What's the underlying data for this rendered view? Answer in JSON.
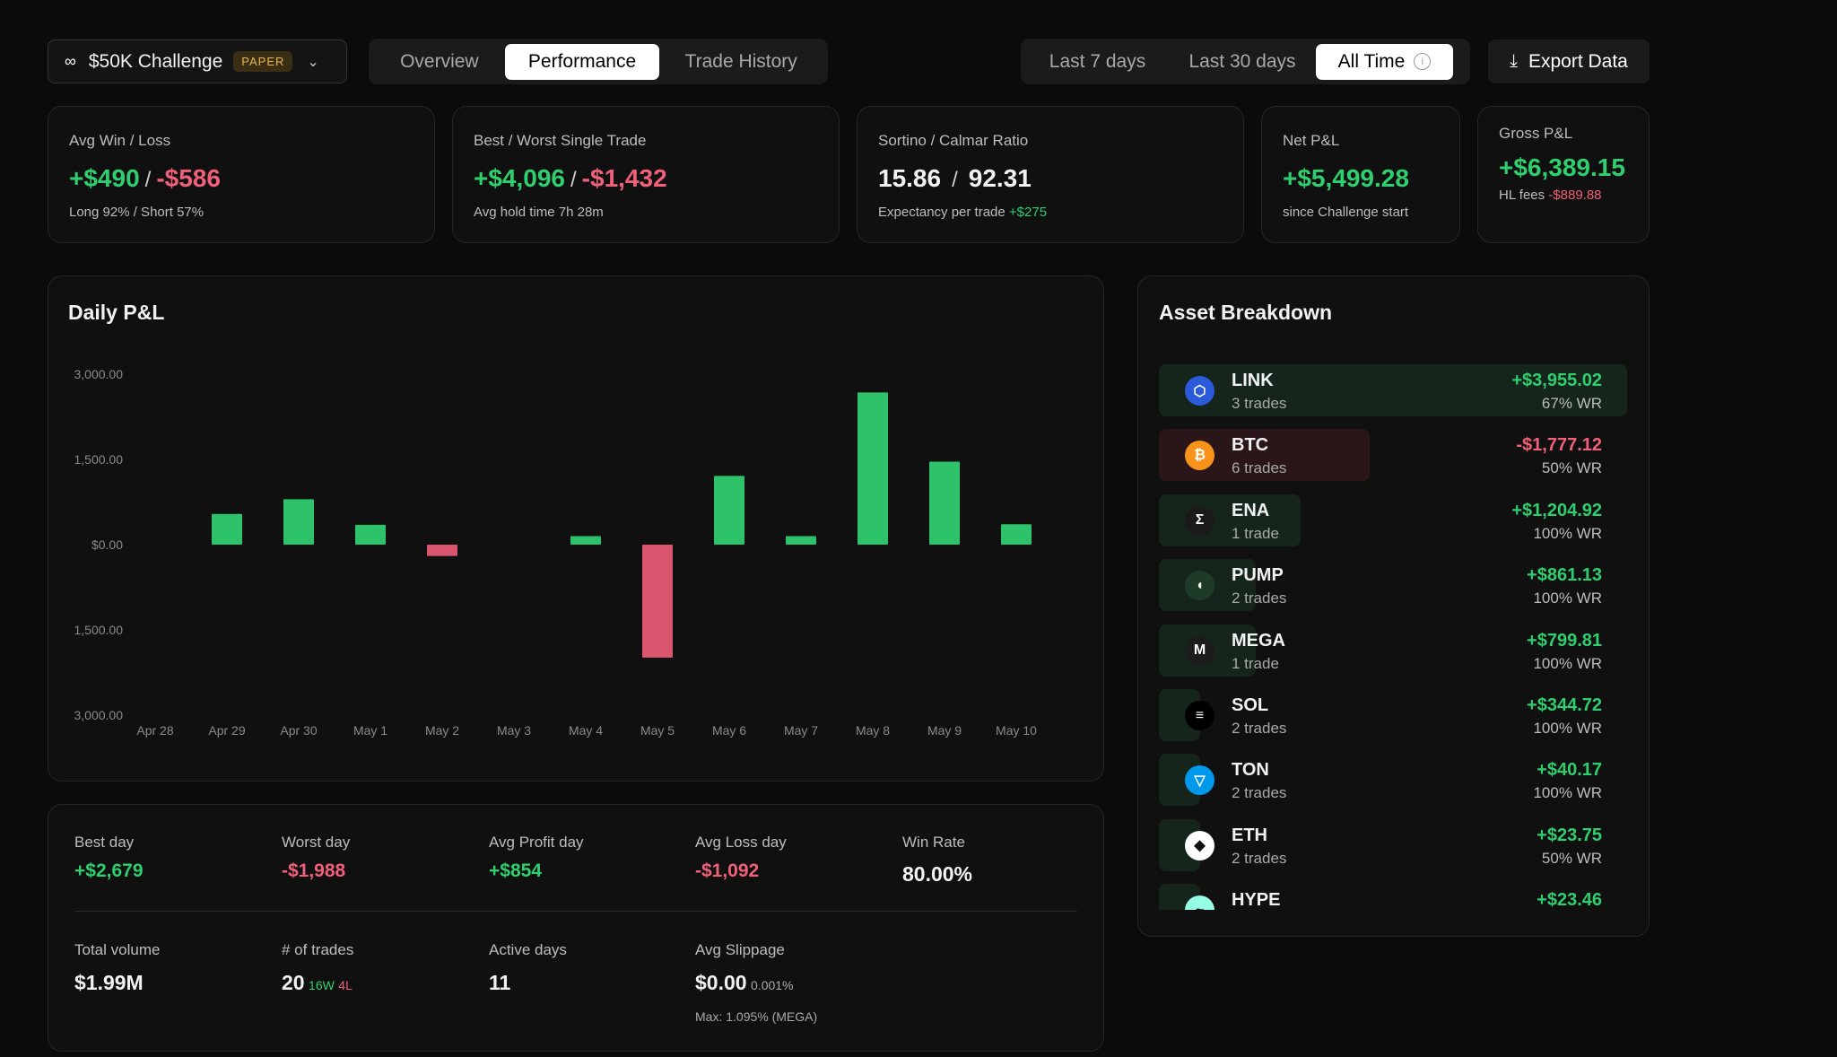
{
  "account": {
    "name": "$50K Challenge",
    "badge": "PAPER",
    "logo": "∞"
  },
  "tabs": [
    {
      "label": "Overview",
      "active": false
    },
    {
      "label": "Performance",
      "active": true
    },
    {
      "label": "Trade History",
      "active": false
    }
  ],
  "ranges": [
    {
      "label": "Last 7 days",
      "active": false
    },
    {
      "label": "Last 30 days",
      "active": false
    },
    {
      "label": "All Time",
      "active": true
    }
  ],
  "export_label": "Export Data",
  "kpis": {
    "avg_win_loss": {
      "label": "Avg Win / Loss",
      "win": "+$490",
      "loss": "-$586",
      "sub": "Long 92% / Short 57%"
    },
    "best_worst": {
      "label": "Best / Worst Single Trade",
      "best": "+$4,096",
      "worst": "-$1,432",
      "sub": "Avg hold time 7h 28m"
    },
    "ratios": {
      "label": "Sortino / Calmar Ratio",
      "sortino": "15.86",
      "calmar": "92.31",
      "sub_label": "Expectancy per trade",
      "sub_value": "+$275"
    },
    "net": {
      "label": "Net P&L",
      "value": "+$5,499.28",
      "sub": "since Challenge start"
    },
    "gross": {
      "label": "Gross P&L",
      "value": "+$6,389.15",
      "fee_label": "HL fees",
      "fee_value": "-$889.88"
    }
  },
  "chart_title": "Daily P&L",
  "chart_data": {
    "type": "bar",
    "categories": [
      "Apr 28",
      "Apr 29",
      "Apr 30",
      "May 1",
      "May 2",
      "May 3",
      "May 4",
      "May 5",
      "May 6",
      "May 7",
      "May 8",
      "May 9",
      "May 10"
    ],
    "values": [
      0,
      540,
      800,
      350,
      -200,
      0,
      150,
      -1988,
      1210,
      150,
      2679,
      1460,
      360
    ],
    "ylim": [
      -3000,
      3000
    ],
    "yticks": [
      3000,
      1500,
      0,
      -1500,
      -3000
    ],
    "ytick_labels": [
      "3,000.00",
      "1,500.00",
      "$0.00",
      "1,500.00",
      "3,000.00"
    ],
    "colors": {
      "positive": "#2ec26a",
      "negative": "#d9566e"
    }
  },
  "asset_title": "Asset Breakdown",
  "assets": [
    {
      "symbol": "LINK",
      "trades": "3 trades",
      "pnl": "+$3,955.02",
      "wr": "67% WR",
      "positive": true,
      "icon": "link-icon",
      "icon_bg": "#2a5ada",
      "glyph": "⬡"
    },
    {
      "symbol": "BTC",
      "trades": "6 trades",
      "pnl": "-$1,777.12",
      "wr": "50% WR",
      "positive": false,
      "icon": "bitcoin-icon",
      "icon_bg": "#f7931a",
      "glyph": "₿"
    },
    {
      "symbol": "ENA",
      "trades": "1 trade",
      "pnl": "+$1,204.92",
      "wr": "100% WR",
      "positive": true,
      "icon": "ena-icon",
      "icon_bg": "#1a1a1a",
      "glyph": "Σ"
    },
    {
      "symbol": "PUMP",
      "trades": "2 trades",
      "pnl": "+$861.13",
      "wr": "100% WR",
      "positive": true,
      "icon": "pill-icon",
      "icon_bg": "#1e3b2a",
      "glyph": "◖"
    },
    {
      "symbol": "MEGA",
      "trades": "1 trade",
      "pnl": "+$799.81",
      "wr": "100% WR",
      "positive": true,
      "icon": "mega-icon",
      "icon_bg": "#1c1c1c",
      "glyph": "M"
    },
    {
      "symbol": "SOL",
      "trades": "2 trades",
      "pnl": "+$344.72",
      "wr": "100% WR",
      "positive": true,
      "icon": "solana-icon",
      "icon_bg": "#000000",
      "glyph": "≡"
    },
    {
      "symbol": "TON",
      "trades": "2 trades",
      "pnl": "+$40.17",
      "wr": "100% WR",
      "positive": true,
      "icon": "ton-icon",
      "icon_bg": "#0098ea",
      "glyph": "▽"
    },
    {
      "symbol": "ETH",
      "trades": "2 trades",
      "pnl": "+$23.75",
      "wr": "50% WR",
      "positive": true,
      "icon": "ethereum-icon",
      "icon_bg": "#ffffff",
      "glyph": "◆"
    },
    {
      "symbol": "HYPE",
      "trades": "",
      "pnl": "+$23.46",
      "wr": "",
      "positive": true,
      "icon": "hype-icon",
      "icon_bg": "#97fce4",
      "glyph": "~"
    }
  ],
  "stats": {
    "best_day": {
      "label": "Best day",
      "value": "+$2,679"
    },
    "worst_day": {
      "label": "Worst day",
      "value": "-$1,988"
    },
    "avg_profit_day": {
      "label": "Avg Profit day",
      "value": "+$854"
    },
    "avg_loss_day": {
      "label": "Avg Loss day",
      "value": "-$1,092"
    },
    "win_rate": {
      "label": "Win Rate",
      "value": "80.00%"
    },
    "total_volume": {
      "label": "Total volume",
      "value": "$1.99M"
    },
    "num_trades": {
      "label": "# of trades",
      "value": "20",
      "wins": "16W",
      "losses": "4L"
    },
    "active_days": {
      "label": "Active days",
      "value": "11"
    },
    "avg_slippage": {
      "label": "Avg Slippage",
      "value": "$0.00",
      "pct": "0.001%",
      "max": "Max: 1.095% (MEGA)"
    }
  }
}
